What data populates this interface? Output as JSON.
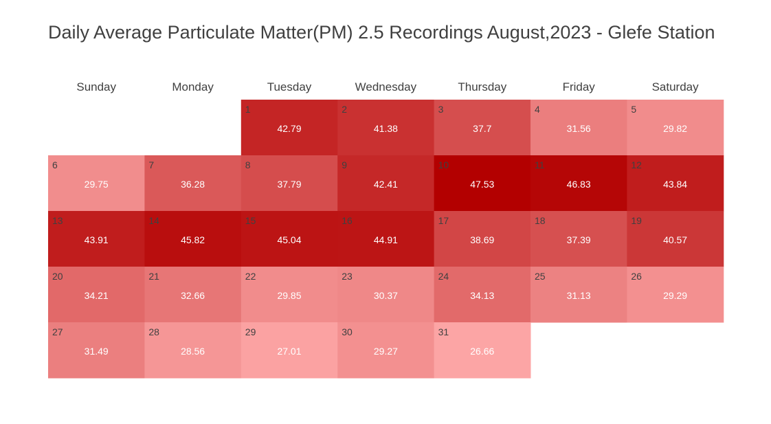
{
  "title": "Daily Average Particulate Matter(PM) 2.5 Recordings August,2023 - Glefe Station",
  "chart_data": {
    "type": "heatmap",
    "weekdays": [
      "Sunday",
      "Monday",
      "Tuesday",
      "Wednesday",
      "Thursday",
      "Friday",
      "Saturday"
    ],
    "first_weekday_index": 2,
    "days": [
      1,
      2,
      3,
      4,
      5,
      6,
      7,
      8,
      9,
      10,
      11,
      12,
      13,
      14,
      15,
      16,
      17,
      18,
      19,
      20,
      21,
      22,
      23,
      24,
      25,
      26,
      27,
      28,
      29,
      30,
      31
    ],
    "values": [
      42.79,
      41.38,
      37.7,
      31.56,
      29.82,
      29.75,
      36.28,
      37.79,
      42.41,
      47.53,
      46.83,
      43.84,
      43.91,
      45.82,
      45.04,
      44.91,
      38.69,
      37.39,
      40.57,
      34.21,
      32.66,
      29.85,
      30.37,
      34.13,
      31.13,
      29.29,
      31.49,
      28.56,
      27.01,
      29.27,
      26.66
    ],
    "value_labels": [
      "42.79",
      "41.38",
      "37.7",
      "31.56",
      "29.82",
      "29.75",
      "36.28",
      "37.79",
      "42.41",
      "47.53",
      "46.83",
      "43.84",
      "43.91",
      "45.82",
      "45.04",
      "44.91",
      "38.69",
      "37.39",
      "40.57",
      "34.21",
      "32.66",
      "29.85",
      "30.37",
      "34.13",
      "31.13",
      "29.29",
      "31.49",
      "28.56",
      "27.01",
      "29.27",
      "26.66"
    ],
    "color_scale": {
      "low": "#fca5a5",
      "high": "#b30000"
    }
  }
}
